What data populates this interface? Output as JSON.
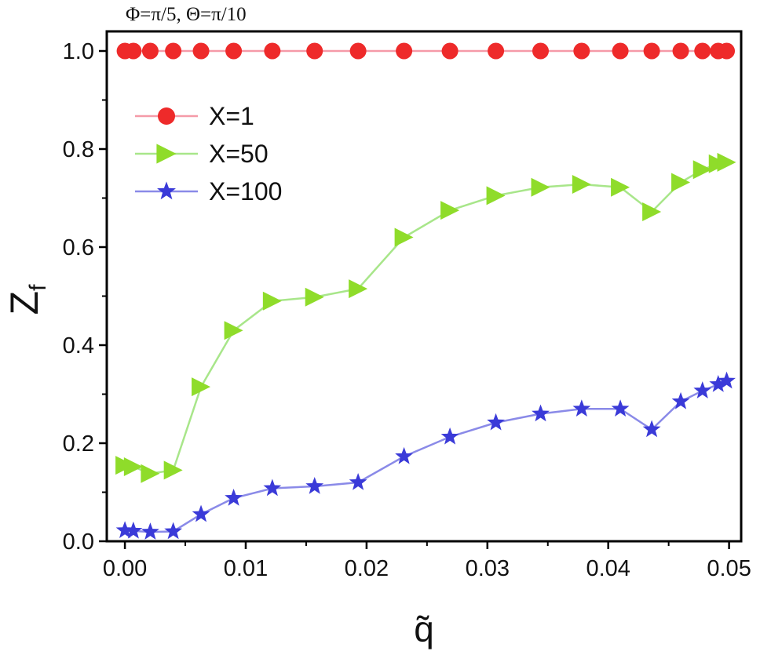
{
  "chart_data": {
    "type": "line",
    "title": "Φ=π/5, Θ=π/10",
    "xlabel": "q̃",
    "ylabel": "Z",
    "ylabel_subscript": "f",
    "xlim": [
      -0.0015,
      0.051
    ],
    "ylim": [
      0.0,
      1.04
    ],
    "xticks": [
      {
        "value": 0.0,
        "label": "0.00"
      },
      {
        "value": 0.01,
        "label": "0.01"
      },
      {
        "value": 0.02,
        "label": "0.02"
      },
      {
        "value": 0.03,
        "label": "0.03"
      },
      {
        "value": 0.04,
        "label": "0.04"
      },
      {
        "value": 0.05,
        "label": "0.05"
      }
    ],
    "yticks": [
      {
        "value": 0.0,
        "label": "0.0"
      },
      {
        "value": 0.2,
        "label": "0.2"
      },
      {
        "value": 0.4,
        "label": "0.4"
      },
      {
        "value": 0.6,
        "label": "0.6"
      },
      {
        "value": 0.8,
        "label": "0.8"
      },
      {
        "value": 1.0,
        "label": "1.0"
      }
    ],
    "grid": false,
    "legend_position": "upper-left",
    "series": [
      {
        "name": "X=1",
        "marker": "circle",
        "line_color": "#f59aa8",
        "marker_color": "#ee2a2a",
        "x": [
          0.0,
          0.0007,
          0.0021,
          0.004,
          0.0063,
          0.009,
          0.0122,
          0.0157,
          0.0193,
          0.0231,
          0.0269,
          0.0307,
          0.0344,
          0.0378,
          0.041,
          0.0436,
          0.046,
          0.0478,
          0.0491,
          0.0498
        ],
        "y": [
          1.0,
          1.0,
          1.0,
          1.0,
          1.0,
          1.0,
          1.0,
          1.0,
          1.0,
          1.0,
          1.0,
          1.0,
          1.0,
          1.0,
          1.0,
          1.0,
          1.0,
          1.0,
          1.0,
          1.0
        ]
      },
      {
        "name": "X=50",
        "marker": "triangle-right",
        "line_color": "#a8e68a",
        "marker_color": "#8fdc2a",
        "x": [
          0.0,
          0.0007,
          0.0021,
          0.004,
          0.0063,
          0.009,
          0.0122,
          0.0157,
          0.0193,
          0.0231,
          0.0269,
          0.0307,
          0.0344,
          0.0378,
          0.041,
          0.0436,
          0.046,
          0.0478,
          0.0491,
          0.0498
        ],
        "y": [
          0.155,
          0.152,
          0.138,
          0.145,
          0.315,
          0.43,
          0.49,
          0.498,
          0.515,
          0.62,
          0.675,
          0.705,
          0.722,
          0.728,
          0.722,
          0.672,
          0.732,
          0.758,
          0.77,
          0.773
        ]
      },
      {
        "name": "X=100",
        "marker": "star",
        "line_color": "#8a8ae8",
        "marker_color": "#3a3ad8",
        "x": [
          0.0,
          0.0007,
          0.0021,
          0.004,
          0.0063,
          0.009,
          0.0122,
          0.0157,
          0.0193,
          0.0231,
          0.0269,
          0.0307,
          0.0344,
          0.0378,
          0.041,
          0.0436,
          0.046,
          0.0478,
          0.0491,
          0.0498
        ],
        "y": [
          0.022,
          0.021,
          0.019,
          0.02,
          0.055,
          0.088,
          0.108,
          0.112,
          0.12,
          0.173,
          0.213,
          0.242,
          0.26,
          0.27,
          0.27,
          0.228,
          0.285,
          0.307,
          0.32,
          0.327
        ]
      }
    ]
  }
}
